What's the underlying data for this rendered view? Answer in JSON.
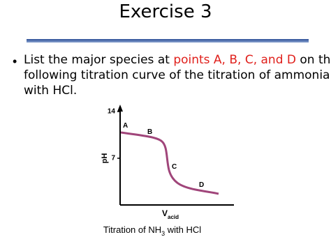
{
  "header": {
    "title": "Exercise 3"
  },
  "bullet": {
    "line1": [
      "List the major species at ",
      "points A, B, C, and D",
      " on the"
    ],
    "line2": "following titration curve of the titration of ammonia",
    "line3": "with HCl."
  },
  "figure": {
    "ylabel": "pH",
    "ylim": [
      0,
      14
    ],
    "yticks": [
      7,
      14
    ],
    "xlabel": "V",
    "xlabel_sub": "acid",
    "points": [
      "A",
      "B",
      "C",
      "D"
    ],
    "caption": [
      "Titration of NH",
      "3",
      " with HCl"
    ]
  }
}
